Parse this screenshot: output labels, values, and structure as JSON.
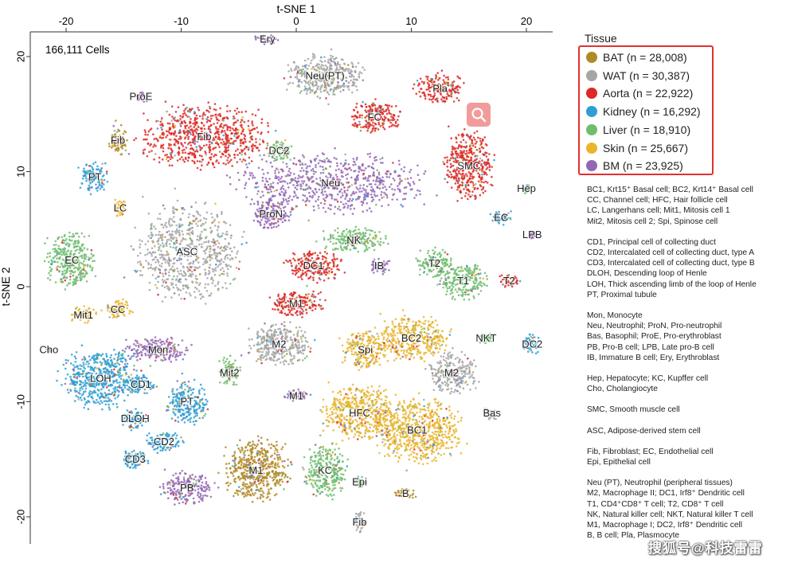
{
  "chart_data": {
    "type": "scatter",
    "xlabel": "t-SNE 1",
    "ylabel": "t-SNE 2",
    "xlim": [
      -23,
      22.5
    ],
    "ylim": [
      -22.5,
      22.5
    ],
    "xticks": [
      -20,
      -10,
      0,
      10,
      20
    ],
    "yticks": [
      20,
      10,
      0,
      -10,
      -20
    ],
    "cell_count_label": "166,111 Cells",
    "legend_title": "Tissue",
    "legend_position": "top-right",
    "series": [
      {
        "name": "BAT (n = 28,008)",
        "color": "#b08a26"
      },
      {
        "name": "WAT (n = 30,387)",
        "color": "#a6a6a6"
      },
      {
        "name": "Aorta (n = 22,922)",
        "color": "#dd2a26"
      },
      {
        "name": "Kidney (n = 16,292)",
        "color": "#2f9fd3"
      },
      {
        "name": "Liver (n = 18,910)",
        "color": "#6fbd6d"
      },
      {
        "name": "Skin (n = 25,667)",
        "color": "#eab52e"
      },
      {
        "name": "BM (n = 23,925)",
        "color": "#9467b5"
      }
    ],
    "clusters": [
      {
        "label": "Ery",
        "x": -2.5,
        "y": 21.5,
        "tissue": 6,
        "rx": 1.2,
        "ry": 0.5
      },
      {
        "label": "Neu(PT)",
        "x": 2.5,
        "y": 18.3,
        "tissue": 1,
        "rx": 3.5,
        "ry": 2.0
      },
      {
        "label": "Pla",
        "x": 12.5,
        "y": 17.2,
        "tissue": 2,
        "rx": 2.2,
        "ry": 1.4
      },
      {
        "label": "ProE",
        "x": -13.5,
        "y": 16.5,
        "tissue": 6,
        "rx": 0.8,
        "ry": 0.5
      },
      {
        "label": "FC",
        "x": 6.8,
        "y": 14.7,
        "tissue": 2,
        "rx": 2.5,
        "ry": 1.5
      },
      {
        "label": "Fib",
        "x": -8.0,
        "y": 13.0,
        "tissue": 2,
        "rx": 6.0,
        "ry": 3.0
      },
      {
        "label": "Fib",
        "x": -15.5,
        "y": 12.7,
        "tissue": 0,
        "rx": 0.9,
        "ry": 1.4
      },
      {
        "label": "DC2",
        "x": -1.5,
        "y": 11.8,
        "tissue": 4,
        "rx": 1.1,
        "ry": 1.0
      },
      {
        "label": "SMC",
        "x": 15.0,
        "y": 10.5,
        "tissue": 2,
        "rx": 2.3,
        "ry": 3.2
      },
      {
        "label": "PT",
        "x": -17.5,
        "y": 9.5,
        "tissue": 3,
        "rx": 1.4,
        "ry": 1.5
      },
      {
        "label": "Neu",
        "x": 3.0,
        "y": 9.0,
        "tissue": 6,
        "rx": 8.5,
        "ry": 2.8
      },
      {
        "label": "Hep",
        "x": 20.0,
        "y": 8.5,
        "tissue": 4,
        "rx": 0.4,
        "ry": 0.4
      },
      {
        "label": "LC",
        "x": -15.3,
        "y": 6.8,
        "tissue": 5,
        "rx": 0.6,
        "ry": 1.0
      },
      {
        "label": "ProN",
        "x": -2.2,
        "y": 6.3,
        "tissue": 6,
        "rx": 1.8,
        "ry": 1.6
      },
      {
        "label": "EC",
        "x": 17.8,
        "y": 6.0,
        "tissue": 3,
        "rx": 1.0,
        "ry": 0.7
      },
      {
        "label": "LPB",
        "x": 20.5,
        "y": 4.5,
        "tissue": 6,
        "rx": 0.3,
        "ry": 0.4
      },
      {
        "label": "NK",
        "x": 5.0,
        "y": 4.0,
        "tissue": 4,
        "rx": 3.0,
        "ry": 1.2
      },
      {
        "label": "ASC",
        "x": -9.5,
        "y": 3.0,
        "tissue": 1,
        "rx": 5.0,
        "ry": 4.5
      },
      {
        "label": "EC",
        "x": -19.5,
        "y": 2.3,
        "tissue": 4,
        "rx": 2.3,
        "ry": 2.6
      },
      {
        "label": "DC1",
        "x": 1.5,
        "y": 1.8,
        "tissue": 2,
        "rx": 2.5,
        "ry": 1.5
      },
      {
        "label": "IB",
        "x": 7.2,
        "y": 1.8,
        "tissue": 6,
        "rx": 1.0,
        "ry": 0.8
      },
      {
        "label": "T2",
        "x": 12.0,
        "y": 2.0,
        "tissue": 4,
        "rx": 1.8,
        "ry": 1.3
      },
      {
        "label": "T1",
        "x": 14.5,
        "y": 0.5,
        "tissue": 4,
        "rx": 2.3,
        "ry": 1.7
      },
      {
        "label": "T2",
        "x": 18.5,
        "y": 0.5,
        "tissue": 2,
        "rx": 1.0,
        "ry": 0.7
      },
      {
        "label": "M1",
        "x": 0.0,
        "y": -1.5,
        "tissue": 2,
        "rx": 2.5,
        "ry": 1.3
      },
      {
        "label": "CC",
        "x": -15.5,
        "y": -2.0,
        "tissue": 5,
        "rx": 1.3,
        "ry": 1.0
      },
      {
        "label": "Mit1",
        "x": -18.5,
        "y": -2.5,
        "tissue": 5,
        "rx": 1.2,
        "ry": 0.8
      },
      {
        "label": "M2",
        "x": -1.5,
        "y": -5.0,
        "tissue": 1,
        "rx": 3.0,
        "ry": 2.0
      },
      {
        "label": "BC2",
        "x": 10.0,
        "y": -4.5,
        "tissue": 5,
        "rx": 3.5,
        "ry": 2.0
      },
      {
        "label": "NKT",
        "x": 16.5,
        "y": -4.5,
        "tissue": 4,
        "rx": 0.8,
        "ry": 0.6
      },
      {
        "label": "DC2",
        "x": 20.5,
        "y": -5.0,
        "tissue": 3,
        "rx": 0.8,
        "ry": 1.0
      },
      {
        "label": "Spi",
        "x": 6.0,
        "y": -5.5,
        "tissue": 5,
        "rx": 2.2,
        "ry": 1.8
      },
      {
        "label": "Mon",
        "x": -12.0,
        "y": -5.5,
        "tissue": 6,
        "rx": 3.0,
        "ry": 1.2
      },
      {
        "label": "Cho",
        "x": -21.5,
        "y": -5.5,
        "tissue": 1,
        "rx": 0.2,
        "ry": 0.2
      },
      {
        "label": "M2",
        "x": 13.5,
        "y": -7.5,
        "tissue": 1,
        "rx": 2.2,
        "ry": 2.0
      },
      {
        "label": "LOH",
        "x": -17.0,
        "y": -8.0,
        "tissue": 3,
        "rx": 3.5,
        "ry": 2.8
      },
      {
        "label": "Mit2",
        "x": -5.8,
        "y": -7.5,
        "tissue": 4,
        "rx": 1.0,
        "ry": 1.5
      },
      {
        "label": "CD1",
        "x": -13.5,
        "y": -8.5,
        "tissue": 3,
        "rx": 1.5,
        "ry": 1.0
      },
      {
        "label": "M1",
        "x": 0.0,
        "y": -9.5,
        "tissue": 6,
        "rx": 1.2,
        "ry": 0.6
      },
      {
        "label": "PT",
        "x": -9.5,
        "y": -10.0,
        "tissue": 3,
        "rx": 2.0,
        "ry": 2.0
      },
      {
        "label": "HFC",
        "x": 5.5,
        "y": -11.0,
        "tissue": 5,
        "rx": 3.5,
        "ry": 2.5
      },
      {
        "label": "Bas",
        "x": 17.0,
        "y": -11.0,
        "tissue": 1,
        "rx": 0.6,
        "ry": 0.7
      },
      {
        "label": "DLOH",
        "x": -14.0,
        "y": -11.5,
        "tissue": 3,
        "rx": 1.3,
        "ry": 1.0
      },
      {
        "label": "BC1",
        "x": 10.5,
        "y": -12.5,
        "tissue": 5,
        "rx": 4.0,
        "ry": 3.0
      },
      {
        "label": "CD2",
        "x": -11.5,
        "y": -13.5,
        "tissue": 3,
        "rx": 1.8,
        "ry": 1.0
      },
      {
        "label": "CD3",
        "x": -14.0,
        "y": -15.0,
        "tissue": 3,
        "rx": 1.3,
        "ry": 1.0
      },
      {
        "label": "M1",
        "x": -3.5,
        "y": -16.0,
        "tissue": 0,
        "rx": 3.0,
        "ry": 3.0
      },
      {
        "label": "KC",
        "x": 2.5,
        "y": -16.0,
        "tissue": 4,
        "rx": 2.0,
        "ry": 2.5
      },
      {
        "label": "Epi",
        "x": 5.5,
        "y": -17.0,
        "tissue": 4,
        "rx": 0.6,
        "ry": 0.6
      },
      {
        "label": "PB",
        "x": -9.5,
        "y": -17.5,
        "tissue": 6,
        "rx": 2.5,
        "ry": 1.5
      },
      {
        "label": "B",
        "x": 9.5,
        "y": -18.0,
        "tissue": 0,
        "rx": 1.0,
        "ry": 0.5
      },
      {
        "label": "Fib",
        "x": 5.5,
        "y": -20.5,
        "tissue": 1,
        "rx": 0.6,
        "ry": 1.0
      }
    ]
  },
  "abbreviations": [
    [
      "BC1, Krt15⁺ Basal cell; BC2, Krt14⁺ Basal cell",
      "CC, Channel cell; HFC, Hair follicle cell",
      "LC, Langerhans cell; Mit1, Mitosis cell 1",
      "Mit2, Mitosis cell 2; Spi, Spinose cell"
    ],
    [
      "CD1, Principal cell of collecting duct",
      "CD2, Intercalated cell of collecting duct, type A",
      "CD3, Intercalated cell of collecting duct, type B",
      "DLOH, Descending loop of Henle",
      "LOH, Thick ascending limb of the loop of Henle",
      "PT, Proximal tubule"
    ],
    [
      "Mon, Monocyte",
      "Neu, Neutrophil; ProN, Pro-neutrophil",
      "Bas, Basophil; ProE, Pro-erythroblast",
      "PB, Pro-B cell; LPB, Late pro-B cell",
      "IB, Immature B cell; Ery, Erythroblast"
    ],
    [
      "Hep, Hepatocyte; KC, Kupffer cell",
      "Cho, Cholangiocyte"
    ],
    [
      "SMC, Smooth muscle cell"
    ],
    [
      "ASC, Adipose-derived stem cell"
    ],
    [
      "Fib, Fibroblast; EC, Endothelial cell",
      "Epi, Epithelial cell"
    ],
    [
      "Neu (PT), Neutrophil (peripheral tissues)",
      "M2, Macrophage II; DC1, Irf8⁺ Dendritic cell",
      "T1, CD4⁺CD8⁺ T cell; T2, CD8⁺ T cell",
      "NK, Natural killer cell; NKT, Natural killer T cell",
      "M1, Macrophage I; DC2, Irf8⁺ Dendritic cell",
      "B, B cell; Pla, Plasmocyte"
    ]
  ],
  "watermark": "搜狐号@科技雷雷"
}
